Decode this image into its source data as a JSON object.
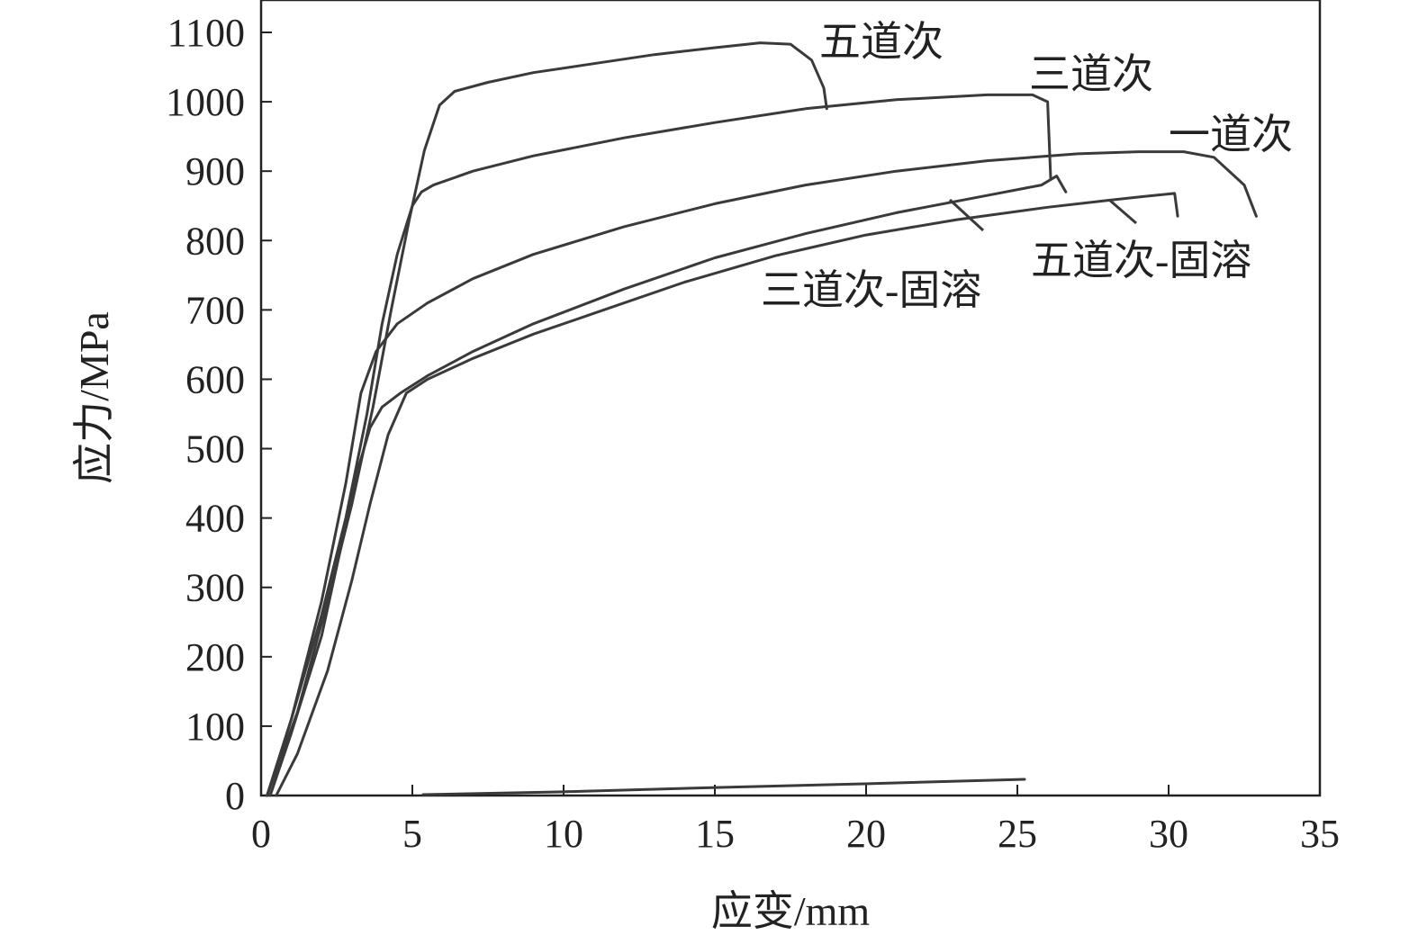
{
  "chart_data": {
    "type": "line",
    "title": "",
    "xlabel": "应变/mm",
    "ylabel": "应力/MPa",
    "xlim": [
      0,
      35
    ],
    "ylim": [
      0,
      1100
    ],
    "xticks": [
      0,
      5,
      10,
      15,
      20,
      25,
      30,
      35
    ],
    "yticks": [
      0,
      100,
      200,
      300,
      400,
      500,
      600,
      700,
      800,
      900,
      1000,
      1100
    ],
    "grid": false,
    "legend": "none (direct labels)",
    "series": [
      {
        "name": "五道次",
        "x": [
          0.2,
          1.2,
          2.2,
          3.0,
          3.7,
          4.3,
          4.9,
          5.4,
          5.9,
          6.4,
          7.5,
          9.0,
          11.0,
          13.0,
          15.0,
          16.5,
          17.5,
          18.2,
          18.6,
          18.7
        ],
        "y": [
          0,
          120,
          280,
          420,
          560,
          700,
          830,
          930,
          995,
          1015,
          1028,
          1042,
          1055,
          1068,
          1078,
          1085,
          1083,
          1060,
          1020,
          990
        ]
      },
      {
        "name": "三道次",
        "x": [
          0.2,
          1.0,
          2.0,
          2.8,
          3.5,
          4.0,
          4.5,
          5.0,
          5.3,
          5.7,
          7.0,
          9.0,
          12.0,
          15.0,
          18.0,
          21.0,
          24.0,
          25.5,
          26.0,
          26.1
        ],
        "y": [
          0,
          110,
          260,
          400,
          550,
          680,
          780,
          850,
          870,
          880,
          900,
          922,
          948,
          970,
          990,
          1003,
          1010,
          1010,
          1000,
          890
        ]
      },
      {
        "name": "一道次",
        "x": [
          0.2,
          1.0,
          2.0,
          2.8,
          3.3,
          3.8,
          4.5,
          5.5,
          7.0,
          9.0,
          12.0,
          15.0,
          18.0,
          21.0,
          24.0,
          27.0,
          29.0,
          30.5,
          31.5,
          32.5,
          32.9
        ],
        "y": [
          0,
          110,
          280,
          450,
          580,
          640,
          680,
          710,
          745,
          780,
          820,
          853,
          880,
          900,
          915,
          925,
          928,
          928,
          920,
          880,
          835
        ]
      },
      {
        "name": "三道次-固溶",
        "x": [
          0.3,
          1.0,
          2.0,
          2.7,
          3.2,
          3.6,
          4.0,
          4.6,
          5.5,
          7.0,
          9.0,
          12.0,
          15.0,
          18.0,
          21.0,
          24.0,
          25.8,
          26.3,
          26.6
        ],
        "y": [
          0,
          90,
          230,
          370,
          470,
          530,
          560,
          580,
          605,
          640,
          680,
          730,
          775,
          810,
          840,
          865,
          880,
          893,
          870
        ]
      },
      {
        "name": "五道次-固溶",
        "x": [
          0.5,
          1.2,
          2.2,
          3.0,
          3.6,
          4.2,
          4.8,
          5.5,
          7.0,
          9.0,
          11.0,
          14.0,
          17.0,
          20.0,
          23.0,
          26.0,
          28.0,
          29.5,
          30.2,
          30.3
        ],
        "y": [
          0,
          60,
          180,
          310,
          420,
          520,
          580,
          600,
          630,
          665,
          695,
          740,
          778,
          808,
          830,
          848,
          858,
          865,
          868,
          835
        ]
      }
    ]
  }
}
